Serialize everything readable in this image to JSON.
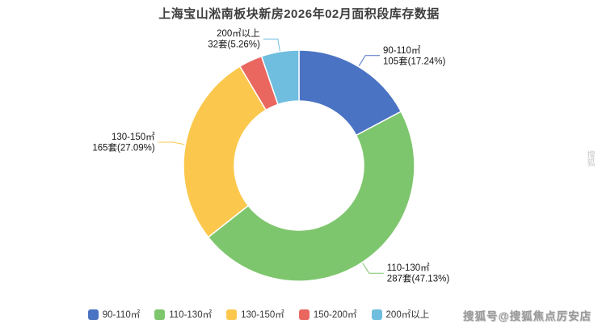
{
  "watermark": {
    "text": "搜狐号@搜狐焦点厉安店",
    "edge_text": "搜狐"
  },
  "chart_data": {
    "type": "pie",
    "subtype": "donut",
    "title": "上海宝山淞南板块新房2026年02月面积段库存数据",
    "unit": "套",
    "legend_position": "bottom",
    "series": [
      {
        "name": "90-110㎡",
        "count": 105,
        "pct": 17.24,
        "callout": "105套(17.24%)",
        "labeled": true,
        "color": "#4B73C3"
      },
      {
        "name": "110-130㎡",
        "count": 287,
        "pct": 47.13,
        "callout": "287套(47.13%)",
        "labeled": true,
        "color": "#7EC66E"
      },
      {
        "name": "130-150㎡",
        "count": 165,
        "pct": 27.09,
        "callout": "165套(27.09%)",
        "labeled": true,
        "color": "#FBC84D"
      },
      {
        "name": "150-200㎡",
        "count": null,
        "pct": 3.28,
        "callout": "",
        "labeled": false,
        "color": "#E9675F"
      },
      {
        "name": "200㎡以上",
        "count": 32,
        "pct": 5.26,
        "callout": "32套(5.26%)",
        "labeled": true,
        "color": "#6FBEDF"
      }
    ]
  }
}
